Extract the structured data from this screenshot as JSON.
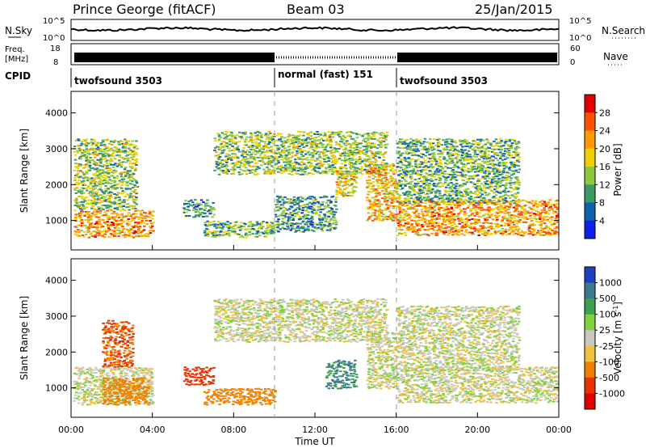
{
  "header": {
    "station": "Prince George (fitACF)",
    "beam": "Beam 03",
    "date": "25/Jan/2015"
  },
  "noise_panel": {
    "left_label": "N.Sky",
    "right_label": "N.Search",
    "left_ticks": [
      "10^5",
      "10^0"
    ],
    "right_ticks": [
      "10^5",
      "10^0"
    ]
  },
  "freq_panel": {
    "left_label_1": "Freq.",
    "left_label_2": "[MHz]",
    "left_ticks": [
      "18",
      "8"
    ],
    "right_label": "Nave",
    "right_ticks": [
      "60",
      "0"
    ]
  },
  "cpid_panel": {
    "label": "CPID",
    "segments": [
      {
        "name": "twofsound 3503",
        "start_hr": 0,
        "end_hr": 10
      },
      {
        "name": "normal (fast) 151",
        "start_hr": 10,
        "end_hr": 16
      },
      {
        "name": "twofsound 3503",
        "start_hr": 16,
        "end_hr": 24
      }
    ]
  },
  "axes": {
    "ylabel": "Slant Range [km]",
    "xlabel": "Time UT",
    "y_ticks": [
      "4000",
      "3000",
      "2000",
      "1000"
    ],
    "x_ticks": [
      "00:00",
      "04:00",
      "08:00",
      "12:00",
      "16:00",
      "20:00",
      "00:00"
    ]
  },
  "colorbars": {
    "power": {
      "label": "Power [dB]",
      "ticks": [
        "28",
        "24",
        "20",
        "16",
        "12",
        "8",
        "4"
      ],
      "colors": [
        "#e00000",
        "#ff5000",
        "#ff9a00",
        "#f0d000",
        "#8ec83c",
        "#3c9a64",
        "#1060b0",
        "#1020e8"
      ]
    },
    "velocity": {
      "label": "Velocity [m s",
      "label_sup": "-1",
      "label_end": "]",
      "ticks": [
        "1000",
        "500",
        "100",
        "25",
        "-25",
        "-100",
        "-500",
        "-1000"
      ],
      "colors": [
        "#1e40c0",
        "#3c7890",
        "#3ca050",
        "#80d040",
        "#c8c8c0",
        "#f0c040",
        "#f08000",
        "#e83000",
        "#e00000"
      ]
    }
  },
  "chart_data": [
    {
      "type": "heatmap",
      "title": "Power",
      "xlabel": "Time UT",
      "ylabel": "Slant Range [km]",
      "xlim": [
        0,
        24
      ],
      "ylim": [
        180,
        4600
      ],
      "colorbar_label": "Power [dB]",
      "colorbar_range": [
        0,
        32
      ],
      "grid": false,
      "echo_regions": [
        {
          "t0": 0.1,
          "t1": 4.0,
          "r0": 550,
          "r1": 1300,
          "power": 22
        },
        {
          "t0": 0.1,
          "t1": 3.2,
          "r0": 1300,
          "r1": 3300,
          "power": 14
        },
        {
          "t0": 5.5,
          "t1": 7.0,
          "r0": 1100,
          "r1": 1600,
          "power": 10
        },
        {
          "t0": 6.5,
          "t1": 10.0,
          "r0": 550,
          "r1": 1000,
          "power": 12
        },
        {
          "t0": 7.0,
          "t1": 15.5,
          "r0": 2300,
          "r1": 3500,
          "power": 14
        },
        {
          "t0": 13.0,
          "t1": 14.0,
          "r0": 1700,
          "r1": 2400,
          "power": 18
        },
        {
          "t0": 10.0,
          "t1": 13.0,
          "r0": 700,
          "r1": 1700,
          "power": 10
        },
        {
          "t0": 14.5,
          "t1": 16.0,
          "r0": 1000,
          "r1": 2600,
          "power": 20
        },
        {
          "t0": 16.0,
          "t1": 24.0,
          "r0": 600,
          "r1": 1600,
          "power": 22
        },
        {
          "t0": 16.0,
          "t1": 22.0,
          "r0": 1500,
          "r1": 3300,
          "power": 12
        }
      ]
    },
    {
      "type": "heatmap",
      "title": "Velocity",
      "xlabel": "Time UT",
      "ylabel": "Slant Range [km]",
      "xlim": [
        0,
        24
      ],
      "ylim": [
        180,
        4600
      ],
      "colorbar_label": "Velocity [m s-1]",
      "colorbar_range": [
        -1000,
        1000
      ],
      "grid": false,
      "echo_regions": [
        {
          "t0": 0.1,
          "t1": 4.0,
          "r0": 550,
          "r1": 1600,
          "velocity": 0
        },
        {
          "t0": 1.5,
          "t1": 3.8,
          "r0": 550,
          "r1": 1300,
          "velocity": -200
        },
        {
          "t0": 1.5,
          "t1": 3.0,
          "r0": 1600,
          "r1": 2900,
          "velocity": -300
        },
        {
          "t0": 5.5,
          "t1": 7.0,
          "r0": 1100,
          "r1": 1600,
          "velocity": -400
        },
        {
          "t0": 6.5,
          "t1": 10.0,
          "r0": 550,
          "r1": 1000,
          "velocity": -150
        },
        {
          "t0": 7.0,
          "t1": 15.5,
          "r0": 2300,
          "r1": 3500,
          "velocity": 0
        },
        {
          "t0": 12.5,
          "t1": 14.0,
          "r0": 1000,
          "r1": 1800,
          "velocity": 300
        },
        {
          "t0": 14.5,
          "t1": 16.0,
          "r0": 1000,
          "r1": 2600,
          "velocity": 0
        },
        {
          "t0": 16.0,
          "t1": 24.0,
          "r0": 600,
          "r1": 1600,
          "velocity": 0
        },
        {
          "t0": 16.0,
          "t1": 22.0,
          "r0": 1500,
          "r1": 3300,
          "velocity": 0
        }
      ]
    }
  ]
}
